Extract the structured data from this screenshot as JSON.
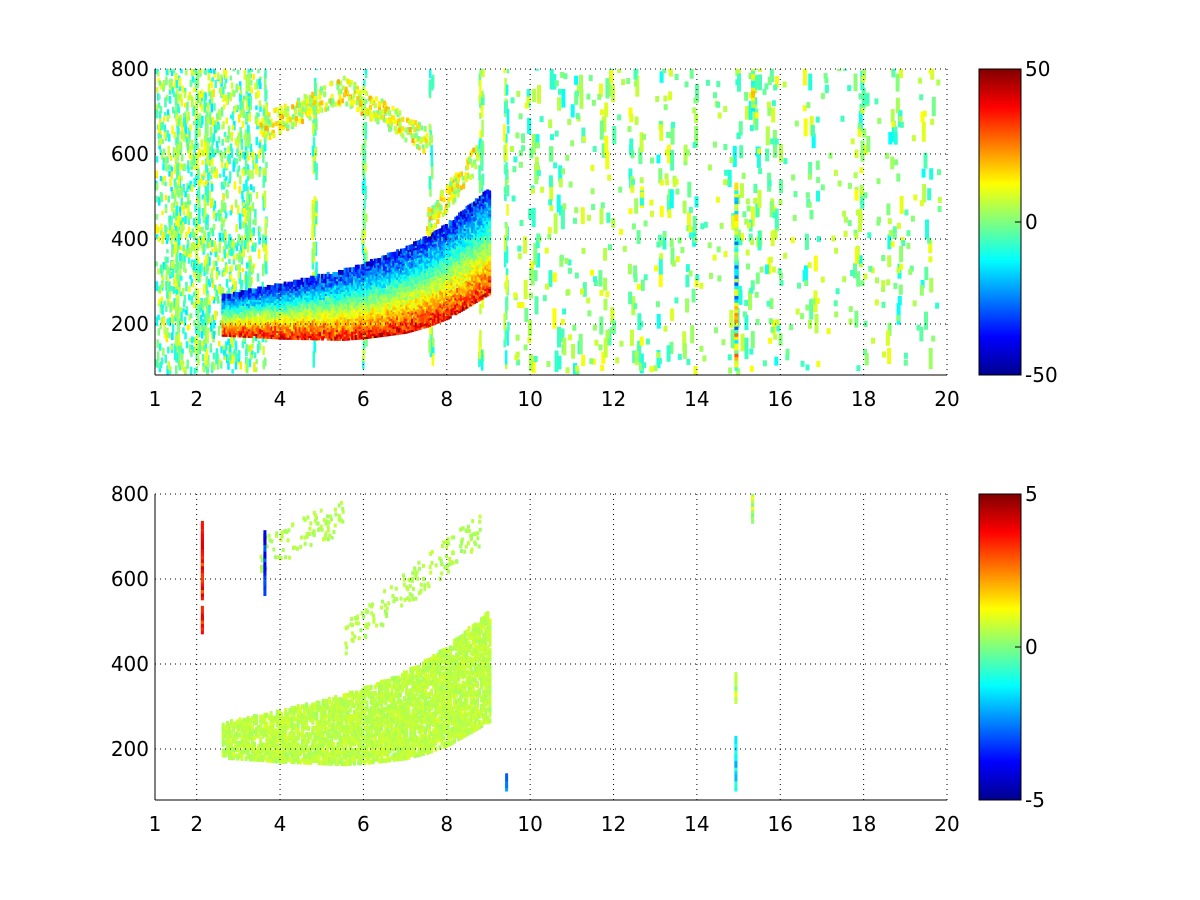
{
  "chart_data": [
    {
      "type": "heatmap",
      "title": "",
      "xlabel": "",
      "ylabel": "",
      "xlim": [
        1,
        20
      ],
      "ylim": [
        80,
        800
      ],
      "xticks": [
        1,
        2,
        4,
        6,
        8,
        10,
        12,
        14,
        16,
        18,
        20
      ],
      "yticks": [
        200,
        400,
        600,
        800
      ],
      "grid": true,
      "colormap": "jet",
      "colorbar": {
        "range": [
          -50,
          50
        ],
        "ticks": [
          50,
          0,
          -50
        ]
      },
      "features": {
        "ridge": {
          "points": [
            [
              2.6,
              215
            ],
            [
              3,
              218
            ],
            [
              3.5,
              222
            ],
            [
              4,
              225
            ],
            [
              4.5,
              230
            ],
            [
              5,
              235
            ],
            [
              5.5,
              240
            ],
            [
              6,
              250
            ],
            [
              6.5,
              262
            ],
            [
              7,
              275
            ],
            [
              7.5,
              295
            ],
            [
              8,
              320
            ],
            [
              8.5,
              355
            ],
            [
              9,
              390
            ]
          ],
          "hot_above_value": 40,
          "cold_below_value": -45
        },
        "upper_branch": {
          "points": [
            [
              3.5,
              650
            ],
            [
              4.5,
              700
            ],
            [
              5.5,
              745
            ]
          ]
        },
        "noise_columns_x": [
          1.5,
          2,
          2.2,
          3.2,
          3.6,
          4.8,
          6,
          7.6,
          8.8,
          9.4
        ],
        "sparse_columns_x": [
          10,
          10.6,
          11.1,
          11.8,
          12.5,
          13.2,
          13.8,
          14.9,
          15.3,
          15.8,
          16.7,
          17.9,
          18.7,
          19.5
        ]
      }
    },
    {
      "type": "heatmap",
      "title": "",
      "xlabel": "",
      "ylabel": "",
      "xlim": [
        1,
        20
      ],
      "ylim": [
        80,
        800
      ],
      "xticks": [
        1,
        2,
        4,
        6,
        8,
        10,
        12,
        14,
        16,
        18,
        20
      ],
      "yticks": [
        200,
        400,
        600,
        800
      ],
      "grid": true,
      "colormap": "jet",
      "colorbar": {
        "range": [
          -5,
          5
        ],
        "ticks": [
          5,
          0,
          -5
        ]
      },
      "features": {
        "ridge": {
          "points": [
            [
              2.6,
              215
            ],
            [
              3,
              218
            ],
            [
              3.5,
              222
            ],
            [
              4,
              225
            ],
            [
              4.5,
              230
            ],
            [
              5,
              235
            ],
            [
              5.5,
              240
            ],
            [
              6,
              250
            ],
            [
              6.5,
              262
            ],
            [
              7,
              275
            ],
            [
              7.5,
              295
            ],
            [
              8,
              320
            ],
            [
              8.5,
              355
            ],
            [
              9,
              390
            ]
          ],
          "dominant_value": 0.6
        },
        "upper_branch": {
          "points": [
            [
              3.5,
              650
            ],
            [
              4.5,
              700
            ],
            [
              5.5,
              745
            ]
          ]
        },
        "isolated_columns": [
          {
            "x": 14.9,
            "y_range": [
              100,
              220
            ],
            "value": -1.5
          },
          {
            "x": 14.9,
            "y_range": [
              290,
              370
            ],
            "value": 0.5
          },
          {
            "x": 15.3,
            "y_range": [
              730,
              800
            ],
            "value": 0.5
          },
          {
            "x": 9.4,
            "y_range": [
              100,
              130
            ],
            "value": -2.5
          },
          {
            "x": 2.1,
            "y_range": [
              470,
              720
            ],
            "value": 3.5
          },
          {
            "x": 3.6,
            "y_range": [
              560,
              700
            ],
            "value": -3.5
          }
        ]
      }
    }
  ]
}
